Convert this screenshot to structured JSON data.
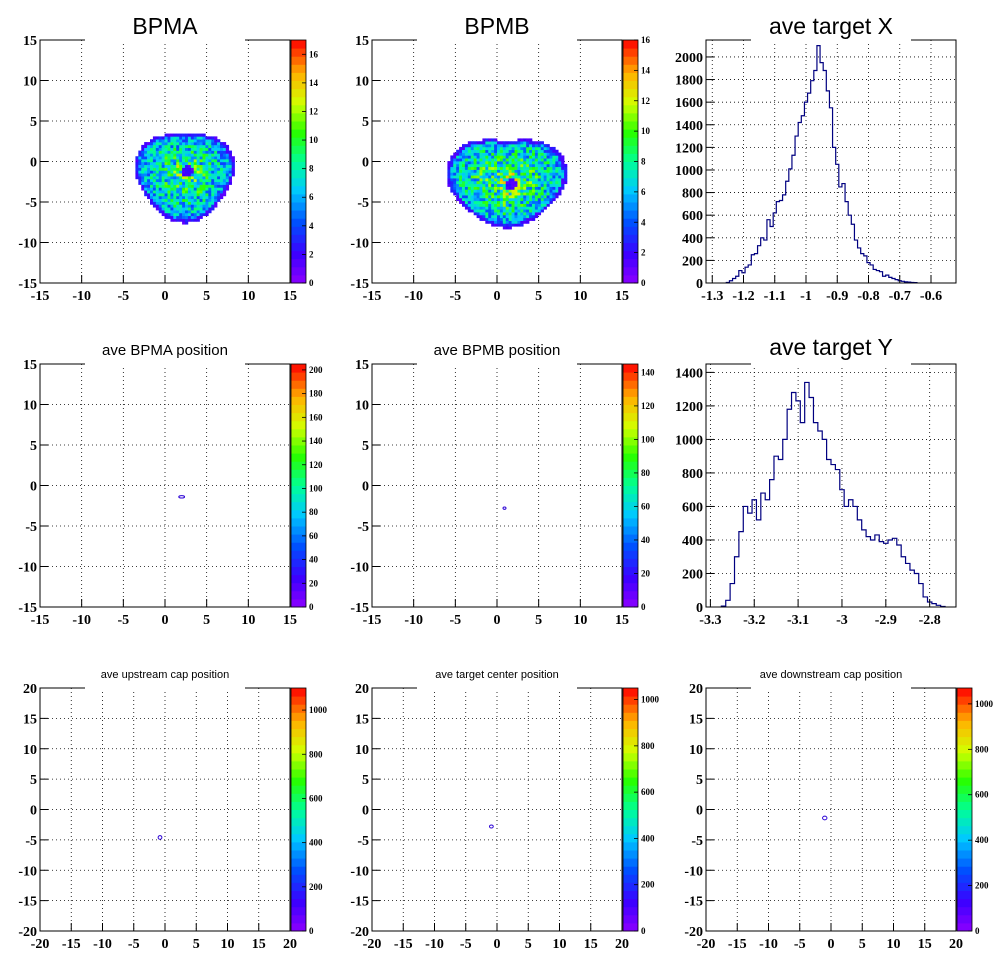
{
  "chart_data": [
    {
      "id": "p1",
      "type": "heatmap",
      "title": "BPMA",
      "title_size": "large",
      "xlim": [
        -15,
        15
      ],
      "ylim": [
        -15,
        15
      ],
      "xticks": [
        -15,
        -10,
        -5,
        0,
        5,
        10,
        15
      ],
      "yticks": [
        -15,
        -10,
        -5,
        0,
        5,
        10,
        15
      ],
      "zlim": [
        0,
        17
      ],
      "zticks": [
        0,
        2,
        4,
        6,
        8,
        10,
        12,
        14,
        16
      ],
      "distribution": {
        "shape": "blob",
        "cx": 2.2,
        "cy": -1.8,
        "rx": 5.6,
        "ry": 5.8,
        "hole": [
          2.5,
          -1.3
        ],
        "peak": 10
      }
    },
    {
      "id": "p2",
      "type": "heatmap",
      "title": "BPMB",
      "title_size": "large",
      "xlim": [
        -15,
        15
      ],
      "ylim": [
        -15,
        15
      ],
      "xticks": [
        -15,
        -10,
        -5,
        0,
        5,
        10,
        15
      ],
      "yticks": [
        -15,
        -10,
        -5,
        0,
        5,
        10,
        15
      ],
      "zlim": [
        0,
        16
      ],
      "zticks": [
        0,
        2,
        4,
        6,
        8,
        10,
        12,
        14,
        16
      ],
      "distribution": {
        "shape": "blob",
        "cx": 1.0,
        "cy": -2.5,
        "rx": 6.8,
        "ry": 5.7,
        "hole": [
          1.5,
          -3.0
        ],
        "peak": 10
      }
    },
    {
      "id": "p3",
      "type": "line",
      "title": "ave target X",
      "title_size": "large",
      "xlim": [
        -1.32,
        -0.52
      ],
      "ylim": [
        0,
        2150
      ],
      "xticks": [
        -1.3,
        -1.2,
        -1.1,
        -1,
        -0.9,
        -0.8,
        -0.7,
        -0.6
      ],
      "xticklabels": [
        "-1.3",
        "-1.2",
        "-1.1",
        "-1",
        "-0.9",
        "-0.8",
        "-0.7",
        "-0.6"
      ],
      "yticks": [
        0,
        200,
        400,
        600,
        800,
        1000,
        1200,
        1400,
        1600,
        1800,
        2000
      ],
      "x": [
        -1.25,
        -1.24,
        -1.23,
        -1.22,
        -1.21,
        -1.2,
        -1.19,
        -1.18,
        -1.17,
        -1.16,
        -1.15,
        -1.14,
        -1.13,
        -1.12,
        -1.11,
        -1.1,
        -1.09,
        -1.08,
        -1.07,
        -1.06,
        -1.05,
        -1.04,
        -1.03,
        -1.02,
        -1.01,
        -1.0,
        -0.99,
        -0.98,
        -0.97,
        -0.96,
        -0.95,
        -0.94,
        -0.93,
        -0.92,
        -0.91,
        -0.9,
        -0.89,
        -0.88,
        -0.87,
        -0.86,
        -0.85,
        -0.84,
        -0.83,
        -0.82,
        -0.81,
        -0.8,
        -0.79,
        -0.78,
        -0.77,
        -0.76,
        -0.75,
        -0.74,
        -0.73,
        -0.72,
        -0.71,
        -0.7,
        -0.69,
        -0.68,
        -0.67,
        -0.66,
        -0.65
      ],
      "values": [
        5,
        20,
        40,
        60,
        110,
        90,
        140,
        160,
        250,
        260,
        330,
        400,
        380,
        560,
        500,
        620,
        720,
        730,
        780,
        900,
        1010,
        1130,
        1300,
        1420,
        1480,
        1600,
        1680,
        1790,
        1880,
        2100,
        1950,
        1880,
        1700,
        1550,
        1200,
        1050,
        850,
        880,
        720,
        600,
        520,
        380,
        310,
        260,
        240,
        180,
        160,
        120,
        110,
        100,
        60,
        70,
        50,
        40,
        30,
        20,
        15,
        10,
        8,
        5,
        3
      ]
    },
    {
      "id": "p4",
      "type": "heatmap",
      "title": "ave BPMA position",
      "title_size": "medium",
      "xlim": [
        -15,
        15
      ],
      "ylim": [
        -15,
        15
      ],
      "xticks": [
        -15,
        -10,
        -5,
        0,
        5,
        10,
        15
      ],
      "yticks": [
        -15,
        -10,
        -5,
        0,
        5,
        10,
        15
      ],
      "zlim": [
        0,
        205
      ],
      "zticks": [
        0,
        20,
        40,
        60,
        80,
        100,
        120,
        140,
        160,
        180,
        200
      ],
      "spot": {
        "x": 2.0,
        "y": -1.4,
        "rx": 0.35,
        "ry": 0.15
      }
    },
    {
      "id": "p5",
      "type": "heatmap",
      "title": "ave BPMB position",
      "title_size": "medium",
      "xlim": [
        -15,
        15
      ],
      "ylim": [
        -15,
        15
      ],
      "xticks": [
        -15,
        -10,
        -5,
        0,
        5,
        10,
        15
      ],
      "yticks": [
        -15,
        -10,
        -5,
        0,
        5,
        10,
        15
      ],
      "zlim": [
        0,
        145
      ],
      "zticks": [
        0,
        20,
        40,
        60,
        80,
        100,
        120,
        140
      ],
      "spot": {
        "x": 0.9,
        "y": -2.8,
        "rx": 0.15,
        "ry": 0.15
      }
    },
    {
      "id": "p6",
      "type": "line",
      "title": "ave target Y",
      "title_size": "large",
      "xlim": [
        -3.31,
        -2.74
      ],
      "ylim": [
        0,
        1450
      ],
      "xticks": [
        -3.3,
        -3.2,
        -3.1,
        -3,
        -2.9,
        -2.8
      ],
      "xticklabels": [
        "-3.3",
        "-3.2",
        "-3.1",
        "-3",
        "-2.9",
        "-2.8"
      ],
      "yticks": [
        0,
        200,
        400,
        600,
        800,
        1000,
        1200,
        1400
      ],
      "x": [
        -3.27,
        -3.26,
        -3.25,
        -3.24,
        -3.23,
        -3.22,
        -3.21,
        -3.2,
        -3.19,
        -3.18,
        -3.17,
        -3.16,
        -3.15,
        -3.14,
        -3.13,
        -3.12,
        -3.11,
        -3.1,
        -3.09,
        -3.08,
        -3.07,
        -3.06,
        -3.05,
        -3.04,
        -3.03,
        -3.02,
        -3.01,
        -3.0,
        -2.99,
        -2.98,
        -2.97,
        -2.96,
        -2.95,
        -2.94,
        -2.93,
        -2.92,
        -2.91,
        -2.9,
        -2.89,
        -2.88,
        -2.87,
        -2.86,
        -2.85,
        -2.84,
        -2.83,
        -2.82,
        -2.81,
        -2.8,
        -2.79,
        -2.78,
        -2.77
      ],
      "values": [
        5,
        40,
        140,
        300,
        450,
        600,
        560,
        640,
        520,
        680,
        640,
        760,
        900,
        880,
        1000,
        1180,
        1280,
        1230,
        1100,
        1340,
        1250,
        1100,
        1050,
        1000,
        880,
        850,
        820,
        700,
        600,
        640,
        600,
        520,
        460,
        420,
        400,
        430,
        390,
        380,
        400,
        410,
        370,
        300,
        260,
        220,
        200,
        140,
        60,
        30,
        20,
        10,
        3
      ]
    },
    {
      "id": "p7",
      "type": "heatmap",
      "title": "ave upstream cap position",
      "title_size": "small",
      "xlim": [
        -20,
        20
      ],
      "ylim": [
        -20,
        20
      ],
      "xticks": [
        -20,
        -15,
        -10,
        -5,
        0,
        5,
        10,
        15,
        20
      ],
      "yticks": [
        -20,
        -15,
        -10,
        -5,
        0,
        5,
        10,
        15,
        20
      ],
      "zlim": [
        0,
        1100
      ],
      "zticks": [
        0,
        200,
        400,
        600,
        800,
        1000
      ],
      "spot": {
        "x": -0.8,
        "y": -4.6,
        "rx": 0.3,
        "ry": 0.3
      }
    },
    {
      "id": "p8",
      "type": "heatmap",
      "title": "ave target center  position",
      "title_size": "small",
      "xlim": [
        -20,
        20
      ],
      "ylim": [
        -20,
        20
      ],
      "xticks": [
        -20,
        -15,
        -10,
        -5,
        0,
        5,
        10,
        15,
        20
      ],
      "yticks": [
        -20,
        -15,
        -10,
        -5,
        0,
        5,
        10,
        15,
        20
      ],
      "zlim": [
        0,
        1050
      ],
      "zticks": [
        0,
        200,
        400,
        600,
        800,
        1000
      ],
      "spot": {
        "x": -0.9,
        "y": -2.8,
        "rx": 0.3,
        "ry": 0.25
      }
    },
    {
      "id": "p9",
      "type": "heatmap",
      "title": "ave downstream cap position",
      "title_size": "small",
      "xlim": [
        -20,
        20
      ],
      "ylim": [
        -20,
        20
      ],
      "xticks": [
        -20,
        -15,
        -10,
        -5,
        0,
        5,
        10,
        15,
        20
      ],
      "yticks": [
        -20,
        -15,
        -10,
        -5,
        0,
        5,
        10,
        15,
        20
      ],
      "zlim": [
        0,
        1070
      ],
      "zticks": [
        0,
        200,
        400,
        600,
        800,
        1000
      ],
      "spot": {
        "x": -1.0,
        "y": -1.4,
        "rx": 0.35,
        "ry": 0.3
      }
    }
  ]
}
